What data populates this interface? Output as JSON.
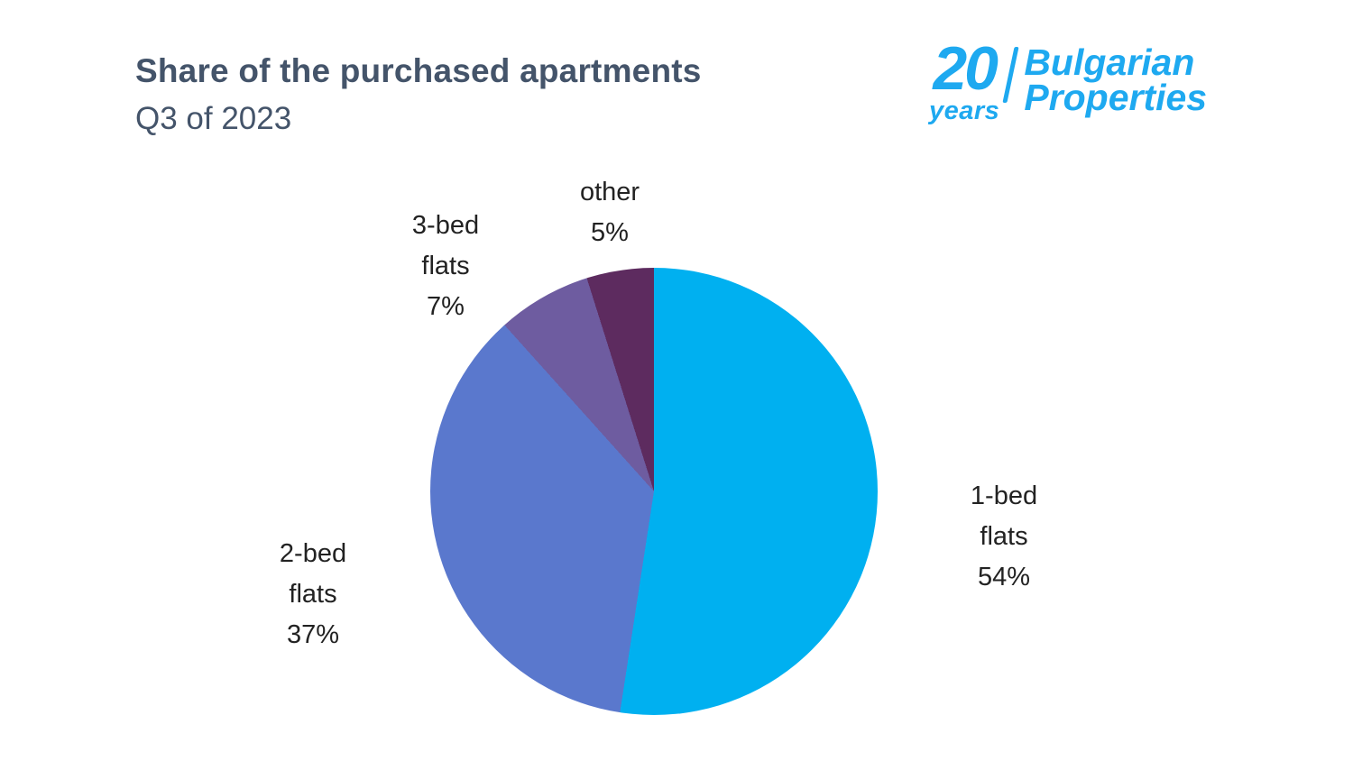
{
  "header": {
    "title": "Share of the purchased apartments",
    "subtitle": "Q3 of 2023",
    "title_color": "#44546A"
  },
  "logo": {
    "number": "20",
    "years": "years",
    "brand_line1": "Bulgarian",
    "brand_line2": "Properties",
    "color": "#1EA9F0"
  },
  "chart_data": {
    "type": "pie",
    "title": "Share of the purchased apartments Q3 of 2023",
    "legend_position": "none",
    "label_style": "outside",
    "start_angle_deg": 0,
    "direction": "clockwise",
    "slices": [
      {
        "name": "1-bed flats",
        "value": 54,
        "color": "#00B0F0",
        "lines": [
          "1-bed",
          "flats",
          "54%"
        ]
      },
      {
        "name": "2-bed flats",
        "value": 37,
        "color": "#5A78CD",
        "lines": [
          "2-bed",
          "flats",
          "37%"
        ]
      },
      {
        "name": "3-bed flats",
        "value": 7,
        "color": "#6E5CA0",
        "lines": [
          "3-bed",
          "flats",
          "7%"
        ]
      },
      {
        "name": "other",
        "value": 5,
        "color": "#5D2B5F",
        "lines": [
          "other",
          "5%"
        ]
      }
    ]
  }
}
